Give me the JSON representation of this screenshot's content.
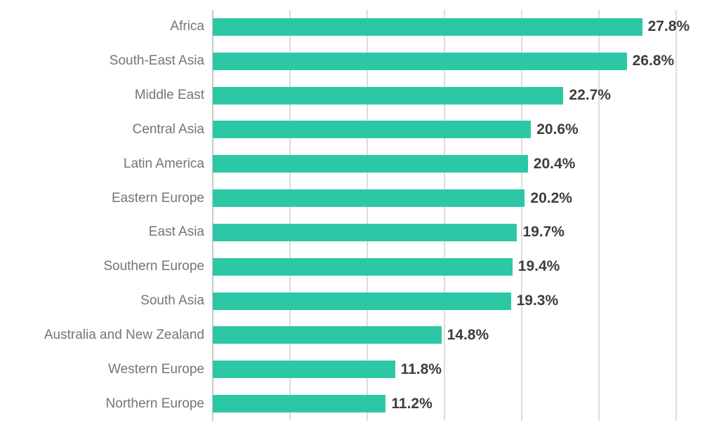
{
  "chart_data": {
    "type": "bar",
    "orientation": "horizontal",
    "title": "",
    "xlabel": "",
    "ylabel": "",
    "categories": [
      "Africa",
      "South-East Asia",
      "Middle East",
      "Central Asia",
      "Latin America",
      "Eastern Europe",
      "East Asia",
      "Southern Europe",
      "South Asia",
      "Australia and New Zealand",
      "Western Europe",
      "Northern Europe"
    ],
    "values": [
      27.8,
      26.8,
      22.7,
      20.6,
      20.4,
      20.2,
      19.7,
      19.4,
      19.3,
      14.8,
      11.8,
      11.2
    ],
    "value_labels": [
      "27.8%",
      "26.8%",
      "22.7%",
      "20.6%",
      "20.4%",
      "20.2%",
      "19.7%",
      "19.4%",
      "19.3%",
      "14.8%",
      "11.8%",
      "11.2%"
    ],
    "axis": {
      "min": 0,
      "max": 30,
      "gridline_step": 5,
      "gridline_values": [
        0,
        5,
        10,
        15,
        20,
        25,
        30
      ],
      "tick_labels_visible": false
    },
    "grid": true,
    "legend": false,
    "data_labels": "outside-end"
  },
  "colors": {
    "bar": "#2cc8a6",
    "category_label": "#757575",
    "value_label": "#3d3d3d",
    "gridline": "#dcdcdc",
    "axis_line": "#c9c9c9",
    "background": "#ffffff"
  }
}
